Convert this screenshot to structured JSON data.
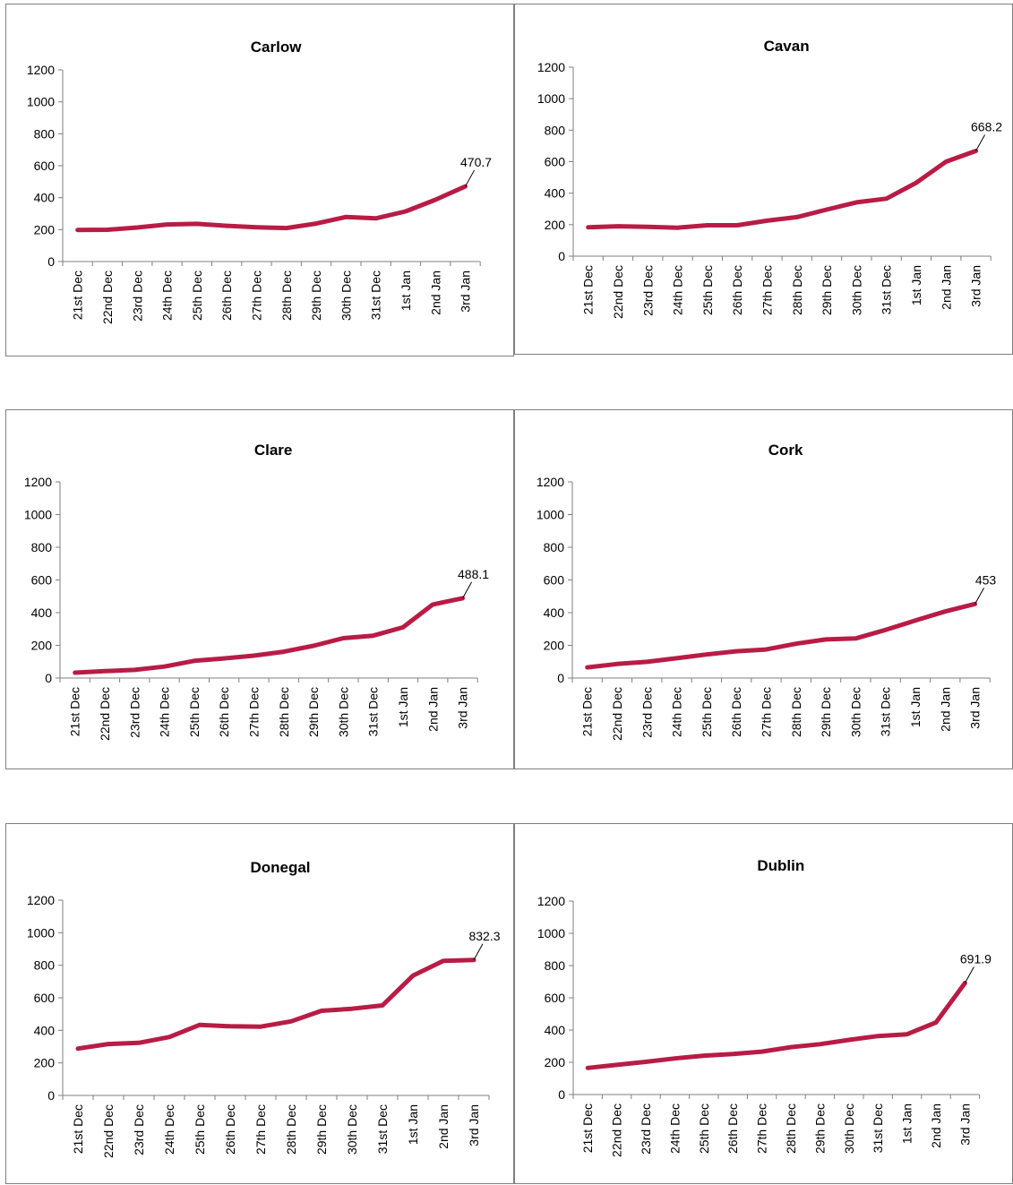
{
  "style": {
    "line_color": "#b81c45",
    "axis_color": "#7f7f7f"
  },
  "chart_data": [
    {
      "type": "line",
      "title": "Carlow",
      "xlabel": "",
      "ylabel": "",
      "ylim": [
        0,
        1200
      ],
      "yticks": [
        "0",
        "200",
        "400",
        "600",
        "800",
        "1000",
        "1200"
      ],
      "categories": [
        "21st Dec",
        "22nd Dec",
        "23rd Dec",
        "24th Dec",
        "25th Dec",
        "26th Dec",
        "27th Dec",
        "28th Dec",
        "29th Dec",
        "30th Dec",
        "31st Dec",
        "1st Jan",
        "2nd Jan",
        "3rd Jan"
      ],
      "values": [
        198,
        199,
        213,
        232,
        236,
        224,
        215,
        210,
        238,
        279,
        270,
        314,
        387,
        470.7
      ],
      "data_label": "470.7",
      "grid": false,
      "legend": "none"
    },
    {
      "type": "line",
      "title": "Cavan",
      "xlabel": "",
      "ylabel": "",
      "ylim": [
        0,
        1200
      ],
      "yticks": [
        "0",
        "200",
        "400",
        "600",
        "800",
        "1000",
        "1200"
      ],
      "categories": [
        "21st Dec",
        "22nd Dec",
        "23rd Dec",
        "24th Dec",
        "25th Dec",
        "26th Dec",
        "27th Dec",
        "28th Dec",
        "29th Dec",
        "30th Dec",
        "31st Dec",
        "1st Jan",
        "2nd Jan",
        "3rd Jan"
      ],
      "values": [
        183,
        190,
        186,
        181,
        196,
        196,
        225,
        248,
        296,
        342,
        365,
        466,
        600,
        668.2
      ],
      "data_label": "668.2",
      "grid": false,
      "legend": "none"
    },
    {
      "type": "line",
      "title": "Clare",
      "xlabel": "",
      "ylabel": "",
      "ylim": [
        0,
        1200
      ],
      "yticks": [
        "0",
        "200",
        "400",
        "600",
        "800",
        "1000",
        "1200"
      ],
      "categories": [
        "21st Dec",
        "22nd Dec",
        "23rd Dec",
        "24th Dec",
        "25th Dec",
        "26th Dec",
        "27th Dec",
        "28th Dec",
        "29th Dec",
        "30th Dec",
        "31st Dec",
        "1st Jan",
        "2nd Jan",
        "3rd Jan"
      ],
      "values": [
        33,
        42,
        50,
        70,
        105,
        120,
        137,
        161,
        197,
        244,
        259,
        310,
        450,
        488.1
      ],
      "data_label": "488.1",
      "grid": false,
      "legend": "none"
    },
    {
      "type": "line",
      "title": "Cork",
      "xlabel": "",
      "ylabel": "",
      "ylim": [
        0,
        1200
      ],
      "yticks": [
        "0",
        "200",
        "400",
        "600",
        "800",
        "1000",
        "1200"
      ],
      "categories": [
        "21st Dec",
        "22nd Dec",
        "23rd Dec",
        "24th Dec",
        "25th Dec",
        "26th Dec",
        "27th Dec",
        "28th Dec",
        "29th Dec",
        "30th Dec",
        "31st Dec",
        "1st Jan",
        "2nd Jan",
        "3rd Jan"
      ],
      "values": [
        65,
        86,
        99,
        121,
        144,
        164,
        175,
        210,
        236,
        242,
        294,
        352,
        407,
        453
      ],
      "data_label": "453",
      "grid": false,
      "legend": "none"
    },
    {
      "type": "line",
      "title": "Donegal",
      "xlabel": "",
      "ylabel": "",
      "ylim": [
        0,
        1200
      ],
      "yticks": [
        "0",
        "200",
        "400",
        "600",
        "800",
        "1000",
        "1200"
      ],
      "categories": [
        "21st Dec",
        "22nd Dec",
        "23rd Dec",
        "24th Dec",
        "25th Dec",
        "26th Dec",
        "27th Dec",
        "28th Dec",
        "29th Dec",
        "30th Dec",
        "31st Dec",
        "1st Jan",
        "2nd Jan",
        "3rd Jan"
      ],
      "values": [
        288,
        316,
        323,
        359,
        434,
        425,
        423,
        455,
        520,
        533,
        553,
        736,
        827,
        832.3
      ],
      "data_label": "832.3",
      "grid": false,
      "legend": "none"
    },
    {
      "type": "line",
      "title": "Dublin",
      "xlabel": "",
      "ylabel": "",
      "ylim": [
        0,
        1200
      ],
      "yticks": [
        "0",
        "200",
        "400",
        "600",
        "800",
        "1000",
        "1200"
      ],
      "categories": [
        "21st Dec",
        "22nd Dec",
        "23rd Dec",
        "24th Dec",
        "25th Dec",
        "26th Dec",
        "27th Dec",
        "28th Dec",
        "29th Dec",
        "30th Dec",
        "31st Dec",
        "1st Jan",
        "2nd Jan",
        "3rd Jan"
      ],
      "values": [
        165,
        184,
        203,
        224,
        241,
        251,
        266,
        294,
        312,
        339,
        363,
        374,
        447,
        691.9
      ],
      "data_label": "691.9",
      "grid": false,
      "legend": "none"
    }
  ]
}
